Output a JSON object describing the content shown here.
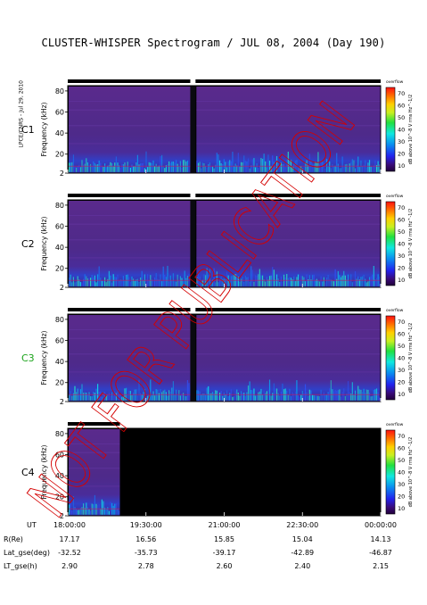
{
  "title": "CLUSTER-WHISPER Spectrogram / JUL 08, 2004 (Day 190)",
  "side_label": "LPCE/CNRS - Jul 29, 2010",
  "stamp": "NOT FOR PUBLICATION",
  "colors": {
    "spacecraft": [
      "#000000",
      "#000000",
      "#1aa31a",
      "#000000"
    ],
    "stamp": "#d40000"
  },
  "chart_data": {
    "type": "heatmap",
    "panels": [
      {
        "label": "C1",
        "ylabel": "Frequency (kHz)",
        "yticks": [
          2,
          20,
          40,
          60,
          80
        ],
        "ylim": [
          2,
          85
        ],
        "data_coverage": [
          [
            0,
            2.35
          ],
          [
            2.45,
            6
          ]
        ],
        "colorbar_label": "dB above 10^-8 V rms Hz^-1/2",
        "colorbar_ticks": [
          10,
          20,
          30,
          40,
          50,
          60,
          70
        ],
        "colorbar_top": "overflow"
      },
      {
        "label": "C2",
        "ylabel": "Frequency (kHz)",
        "yticks": [
          2,
          20,
          40,
          60,
          80
        ],
        "ylim": [
          2,
          85
        ],
        "data_coverage": [
          [
            0,
            2.35
          ],
          [
            2.45,
            6
          ]
        ],
        "colorbar_label": "dB above 10^-8 V rms Hz^-1/2",
        "colorbar_ticks": [
          10,
          20,
          30,
          40,
          50,
          60,
          70
        ],
        "colorbar_top": "overflow"
      },
      {
        "label": "C3",
        "ylabel": "Frequency (kHz)",
        "yticks": [
          2,
          20,
          40,
          60,
          80
        ],
        "ylim": [
          2,
          85
        ],
        "data_coverage": [
          [
            0,
            2.35
          ],
          [
            2.45,
            6
          ]
        ],
        "colorbar_label": "dB above 10^-8 V rms Hz^-1/2",
        "colorbar_ticks": [
          10,
          20,
          30,
          40,
          50,
          60,
          70
        ],
        "colorbar_top": "overflow"
      },
      {
        "label": "C4",
        "ylabel": "Frequency (kHz)",
        "yticks": [
          2,
          20,
          40,
          60,
          80
        ],
        "ylim": [
          2,
          85
        ],
        "data_coverage": [
          [
            0,
            1.0
          ]
        ],
        "colorbar_label": "dB above 10^-8 V rms Hz^-1/2",
        "colorbar_ticks": [
          10,
          20,
          30,
          40,
          50,
          60,
          70
        ],
        "colorbar_top": "overflow"
      }
    ],
    "x_rows": [
      {
        "name": "UT",
        "values": [
          "18:00:00",
          "19:30:00",
          "21:00:00",
          "22:30:00",
          "00:00:00"
        ]
      },
      {
        "name": "R(Re)",
        "values": [
          "17.17",
          "16.56",
          "15.85",
          "15.04",
          "14.13"
        ]
      },
      {
        "name": "Lat_gse(deg)",
        "values": [
          "-32.52",
          "-35.73",
          "-39.17",
          "-42.89",
          "-46.87"
        ]
      },
      {
        "name": "LT_gse(h)",
        "values": [
          "2.90",
          "2.78",
          "2.60",
          "2.40",
          "2.15"
        ]
      }
    ],
    "x_hours": [
      0,
      1.5,
      3,
      4.5,
      6
    ],
    "xlim": [
      0,
      6
    ]
  }
}
